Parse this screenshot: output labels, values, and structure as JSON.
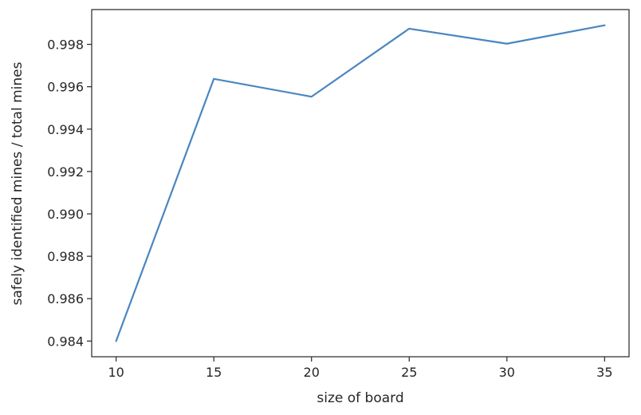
{
  "chart_data": {
    "type": "line",
    "title": "",
    "xlabel": "size of board",
    "ylabel": "safely identified mines / total mines",
    "x": [
      10,
      15,
      20,
      25,
      30,
      35
    ],
    "series": [
      {
        "values": [
          0.984,
          0.99637,
          0.99553,
          0.99874,
          0.99803,
          0.9989
        ]
      }
    ],
    "xticks": [
      10,
      15,
      20,
      25,
      30,
      35
    ],
    "xtick_labels": [
      "10",
      "15",
      "20",
      "25",
      "30",
      "35"
    ],
    "yticks": [
      0.984,
      0.986,
      0.988,
      0.99,
      0.992,
      0.994,
      0.996,
      0.998
    ],
    "ytick_labels": [
      "0.984",
      "0.986",
      "0.988",
      "0.990",
      "0.992",
      "0.994",
      "0.996",
      "0.998"
    ],
    "xlim": [
      8.75,
      36.25
    ],
    "ylim": [
      0.98326,
      0.99964
    ],
    "grid": false,
    "line_color": "#4a86c1"
  }
}
